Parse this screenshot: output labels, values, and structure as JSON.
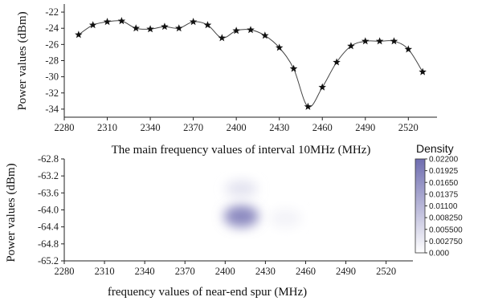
{
  "chart_data": [
    {
      "type": "line",
      "title": "",
      "xlabel": "The main frequency values of interval 10MHz (MHz)",
      "ylabel": "Power values (dBm)",
      "xlim": [
        2280,
        2540
      ],
      "ylim": [
        -35,
        -21
      ],
      "x_ticks": [
        "2280",
        "2310",
        "2340",
        "2370",
        "2400",
        "2430",
        "2460",
        "2490",
        "2520"
      ],
      "y_ticks": [
        "-22",
        "-24",
        "-26",
        "-28",
        "-30",
        "-32",
        "-34"
      ],
      "marker": "star",
      "line_color": "#444444",
      "x": [
        2290,
        2300,
        2310,
        2320,
        2330,
        2340,
        2350,
        2360,
        2370,
        2380,
        2390,
        2400,
        2410,
        2420,
        2430,
        2440,
        2450,
        2460,
        2470,
        2480,
        2490,
        2500,
        2510,
        2520,
        2530
      ],
      "y": [
        -24.8,
        -23.6,
        -23.2,
        -23.1,
        -24.0,
        -24.1,
        -23.8,
        -24.0,
        -23.2,
        -23.6,
        -25.2,
        -24.3,
        -24.2,
        -24.9,
        -26.4,
        -29.0,
        -33.7,
        -31.3,
        -28.2,
        -26.2,
        -25.6,
        -25.6,
        -25.6,
        -26.6,
        -29.4
      ]
    },
    {
      "type": "heatmap",
      "title": "",
      "xlabel": "frequency values of near-end spur (MHz)",
      "ylabel": "Power values (dBm)",
      "xlim": [
        2280,
        2540
      ],
      "ylim": [
        -65.2,
        -62.8
      ],
      "x_ticks": [
        "2280",
        "2310",
        "2340",
        "2370",
        "2400",
        "2430",
        "2460",
        "2490",
        "2520"
      ],
      "y_ticks": [
        "-62.8",
        "-63.2",
        "-63.6",
        "-64.0",
        "-64.4",
        "-64.8",
        "-65.2"
      ],
      "data_extent_x": [
        2280,
        2487
      ],
      "hotspots": [
        {
          "x": 2412,
          "y": -64.15,
          "sx": 13,
          "sy": 0.26,
          "density": 0.0185
        },
        {
          "x": 2412,
          "y": -63.5,
          "sx": 12,
          "sy": 0.2,
          "density": 0.0045
        },
        {
          "x": 2445,
          "y": -64.2,
          "sx": 12,
          "sy": 0.22,
          "density": 0.002
        }
      ],
      "colorbar": {
        "title": "Density",
        "min": 0.0,
        "max": 0.022,
        "ticks": [
          "0.02200",
          "0.01925",
          "0.01650",
          "0.01375",
          "0.01100",
          "0.008250",
          "0.005500",
          "0.002750",
          "0.000"
        ],
        "low_color": "#ffffff",
        "high_color": "#6f6db0"
      }
    }
  ]
}
